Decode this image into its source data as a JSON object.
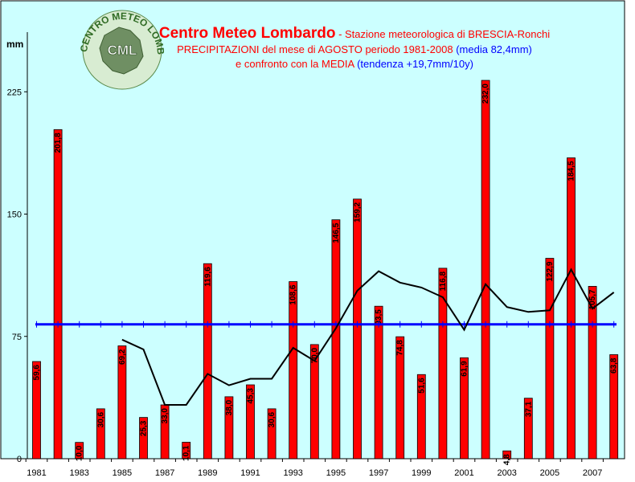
{
  "header": {
    "title": "Centro Meteo Lombardo",
    "title_sep": " - ",
    "subtitle_station": "Stazione meteorologica di BRESCIA-Ronchi",
    "line2_red": "PRECIPITAZIONI del mese di AGOSTO periodo 1981-2008 ",
    "line2_blue": "(media 82,4mm)",
    "line3_red": "e confronto con la MEDIA ",
    "line3_blue": "(tendenza +19,7mm/10y)"
  },
  "logo": {
    "arc_text": "CENTRO METEO LOMBARDO",
    "initials": "CML"
  },
  "colors": {
    "plot_background": "#ccffff",
    "bar_fill": "#ff0000",
    "mean_line": "#0000ff",
    "moving_line": "#000000",
    "title_red": "#ff0000",
    "title_blue": "#0000ff",
    "logo_green": "#2f6b24"
  },
  "chart_data": {
    "type": "bar",
    "ylabel": "mm",
    "ylim": [
      0,
      255
    ],
    "yticks": [
      0,
      75,
      150,
      225
    ],
    "x_tick_labels": [
      "1981",
      "1983",
      "1985",
      "1987",
      "1989",
      "1991",
      "1993",
      "1995",
      "1997",
      "1999",
      "2001",
      "2003",
      "2005",
      "2007"
    ],
    "grid": false,
    "categories": [
      "1981",
      "1982",
      "1983",
      "1984",
      "1985",
      "1986",
      "1987",
      "1988",
      "1989",
      "1990",
      "1991",
      "1992",
      "1993",
      "1994",
      "1995",
      "1996",
      "1997",
      "1998",
      "1999",
      "2000",
      "2001",
      "2002",
      "2003",
      "2004",
      "2005",
      "2006",
      "2007",
      "2008"
    ],
    "values": [
      59.6,
      201.8,
      10.0,
      30.6,
      69.2,
      25.3,
      33.0,
      10.1,
      119.6,
      38.0,
      45.3,
      30.6,
      108.6,
      70.0,
      146.5,
      159.2,
      93.5,
      74.8,
      51.6,
      116.8,
      61.9,
      232.0,
      4.8,
      37.1,
      122.9,
      184.5,
      105.7,
      63.8
    ],
    "bar_labels": [
      "59,6",
      "201,8",
      "10,0",
      "30,6",
      "69,2",
      "25,3",
      "33,0",
      "10,1",
      "119,6",
      "38,0",
      "45,3",
      "30,6",
      "108,6",
      "70,0",
      "146,5",
      "159,2",
      "93,5",
      "74,8",
      "51,6",
      "116,8",
      "61,9",
      "232,0",
      "4,8",
      "37,1",
      "122,9",
      "184,5",
      "105,7",
      "63,8"
    ],
    "mean_value": 82.4,
    "moving_average": [
      null,
      null,
      null,
      null,
      73,
      67,
      33,
      33,
      52,
      45,
      49,
      49,
      68,
      60,
      80,
      103,
      115,
      108,
      105,
      99,
      79,
      107,
      93,
      90,
      91,
      116,
      92,
      102
    ]
  }
}
